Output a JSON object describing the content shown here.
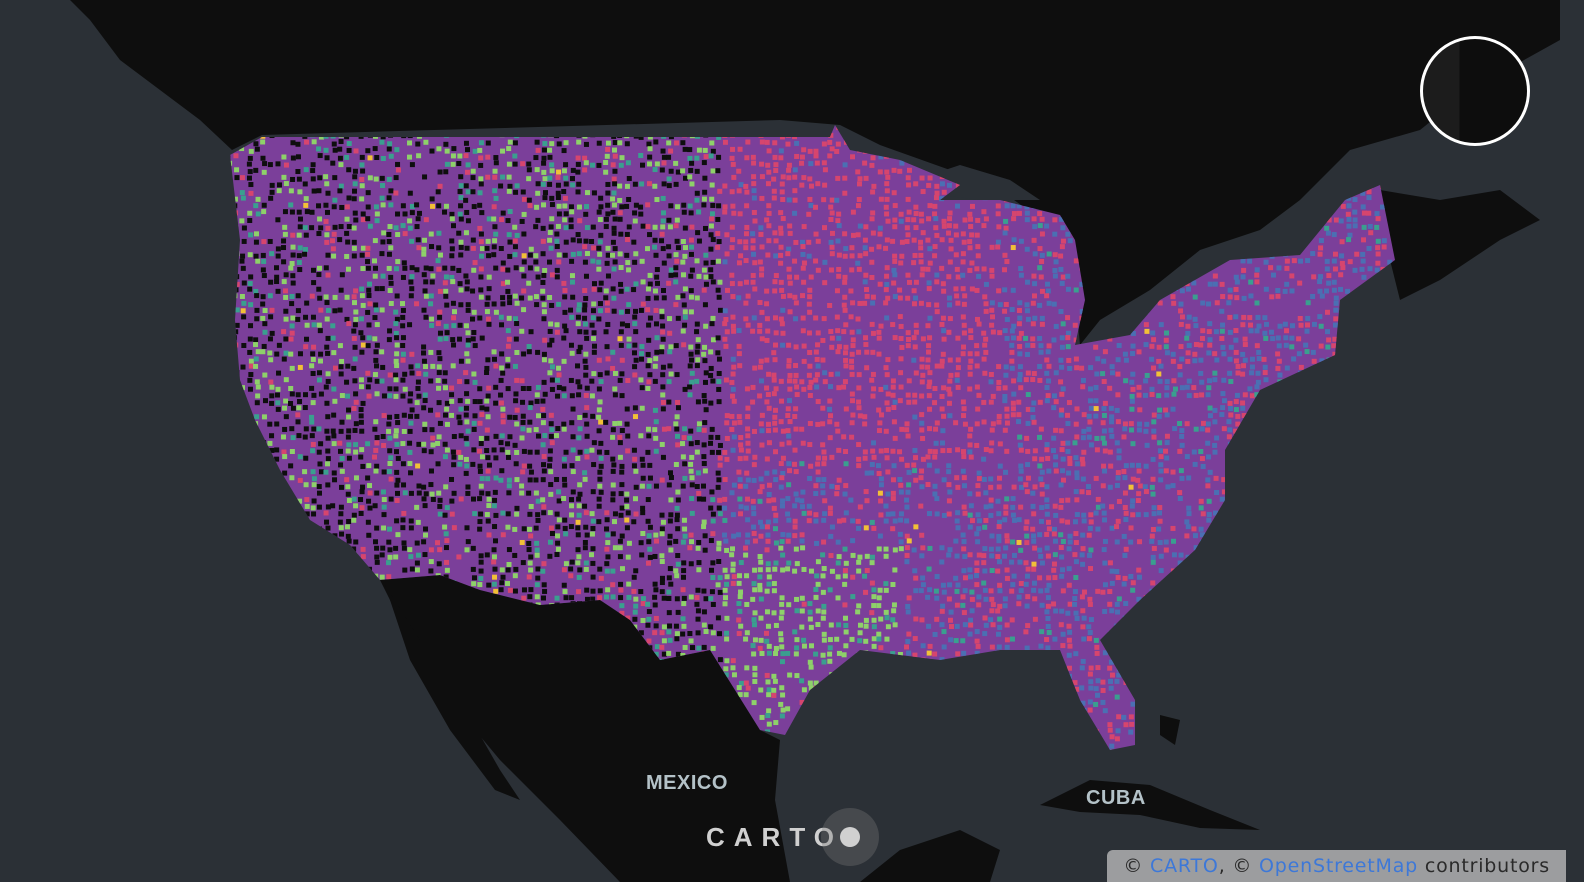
{
  "map": {
    "labels": {
      "mexico": "MEXICO",
      "cuba": "CUBA"
    },
    "logo": {
      "text": "CARTO"
    },
    "attribution": {
      "prefix": "© ",
      "carto_link": "CARTO",
      "separator": ", © ",
      "osm_link": "OpenStreetMap",
      "suffix": " contributors"
    },
    "colors": {
      "ocean": "#2b3036",
      "land": "#0e0e0e",
      "palette": [
        "#7b3f9a",
        "#d6456e",
        "#4b6fb3",
        "#8ed16a",
        "#3a9f8f",
        "#f2c037"
      ]
    }
  }
}
